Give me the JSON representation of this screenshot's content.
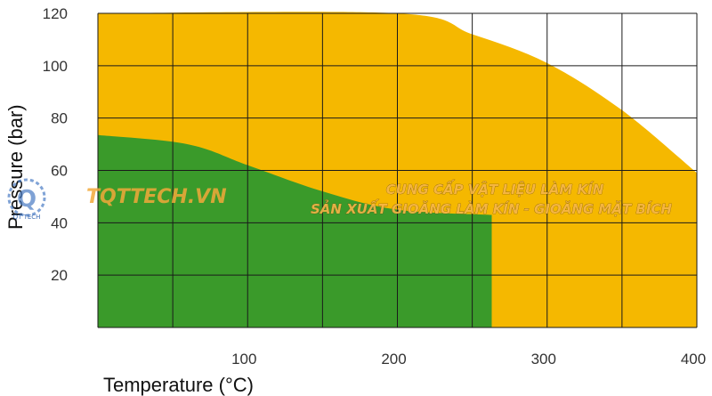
{
  "chart_data": {
    "type": "area",
    "title": "",
    "xlabel": "Temperature (°C)",
    "ylabel": "Pressure (bar)",
    "xlim": [
      0,
      400
    ],
    "ylim": [
      0,
      120
    ],
    "x_ticks": [
      100,
      200,
      300,
      400
    ],
    "y_ticks": [
      20,
      40,
      60,
      80,
      100,
      120
    ],
    "grid": true,
    "colors": {
      "outer_region": "#f5b800",
      "inner_region": "#3a9a2a",
      "grid": "#1a1a1a",
      "background": "#ffffff"
    },
    "regions": [
      {
        "color": "#f5b800",
        "boundary": [
          {
            "x": 0,
            "y": 120
          },
          {
            "x": 200,
            "y": 120
          },
          {
            "x": 250,
            "y": 112
          },
          {
            "x": 300,
            "y": 101
          },
          {
            "x": 350,
            "y": 83
          },
          {
            "x": 400,
            "y": 59
          }
        ]
      },
      {
        "color": "#3a9a2a",
        "boundary": [
          {
            "x": 0,
            "y": 73.5
          },
          {
            "x": 60,
            "y": 70
          },
          {
            "x": 100,
            "y": 62
          },
          {
            "x": 150,
            "y": 52
          },
          {
            "x": 200,
            "y": 45
          },
          {
            "x": 263,
            "y": 43
          }
        ],
        "x_max": 263
      }
    ]
  },
  "watermark": {
    "brand": "TQTTECH.VN",
    "line1": "CUNG CẤP VẬT LIỆU LÀM KÍN",
    "line2": "SẢN XUẤT GIOĂNG LÀM KÍN - GIOĂNG MẶT BÍCH",
    "logo_text": "QT TECH"
  }
}
